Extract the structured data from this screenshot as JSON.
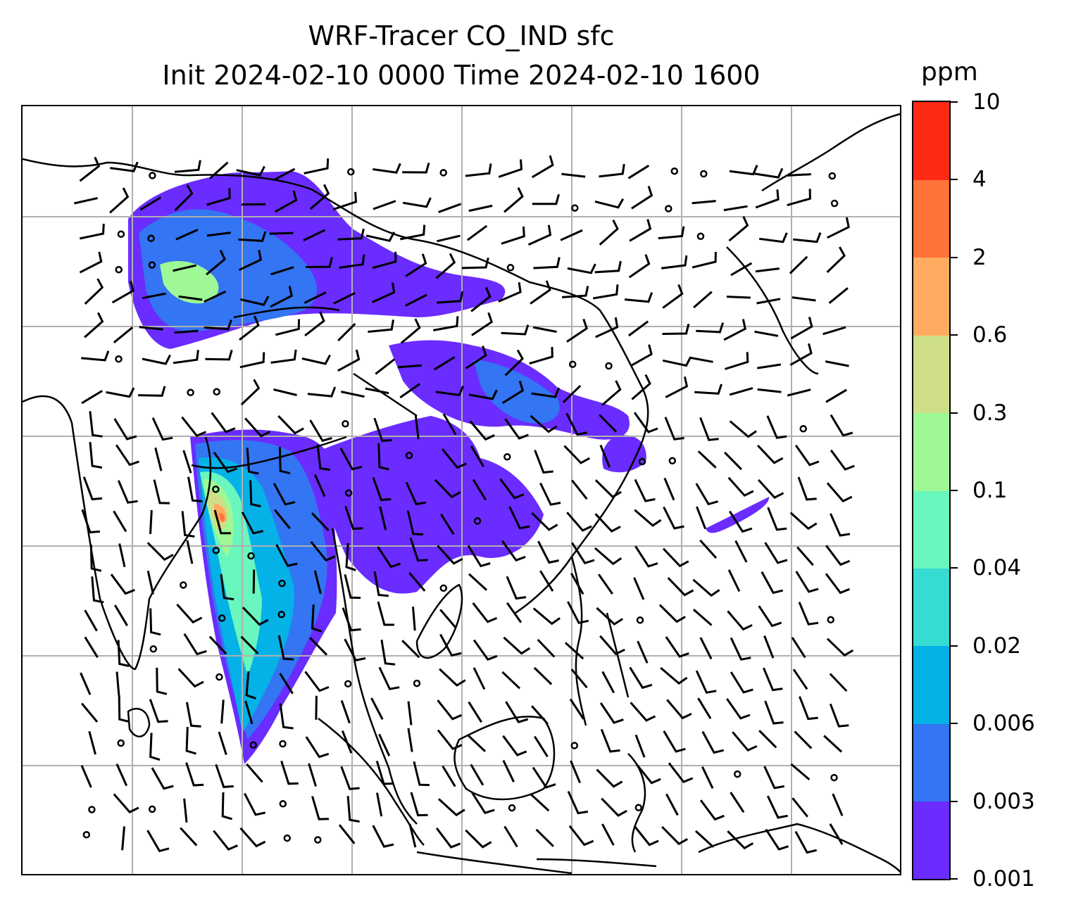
{
  "title": {
    "line1": "WRF-Tracer CO_IND sfc",
    "line2": "Init 2024-02-10 0000 Time 2024-02-10 1600"
  },
  "colorbar": {
    "unit": "ppm",
    "tick_labels": [
      "0.001",
      "0.003",
      "0.006",
      "0.02",
      "0.04",
      "0.1",
      "0.3",
      "0.6",
      "2",
      "4",
      "10"
    ],
    "colors": [
      "#6a2cff",
      "#3375f2",
      "#04b2e8",
      "#36dbd4",
      "#69f7bd",
      "#9ef896",
      "#cfdf87",
      "#ffab60",
      "#ff7238",
      "#ff2a16"
    ]
  },
  "map": {
    "gridlines": true,
    "coastlines": true,
    "overlay": "wind-barbs",
    "plume_levels": [
      "0.001",
      "0.003",
      "0.006",
      "0.02",
      "0.04",
      "0.1",
      "0.3",
      "0.6",
      "2"
    ]
  }
}
